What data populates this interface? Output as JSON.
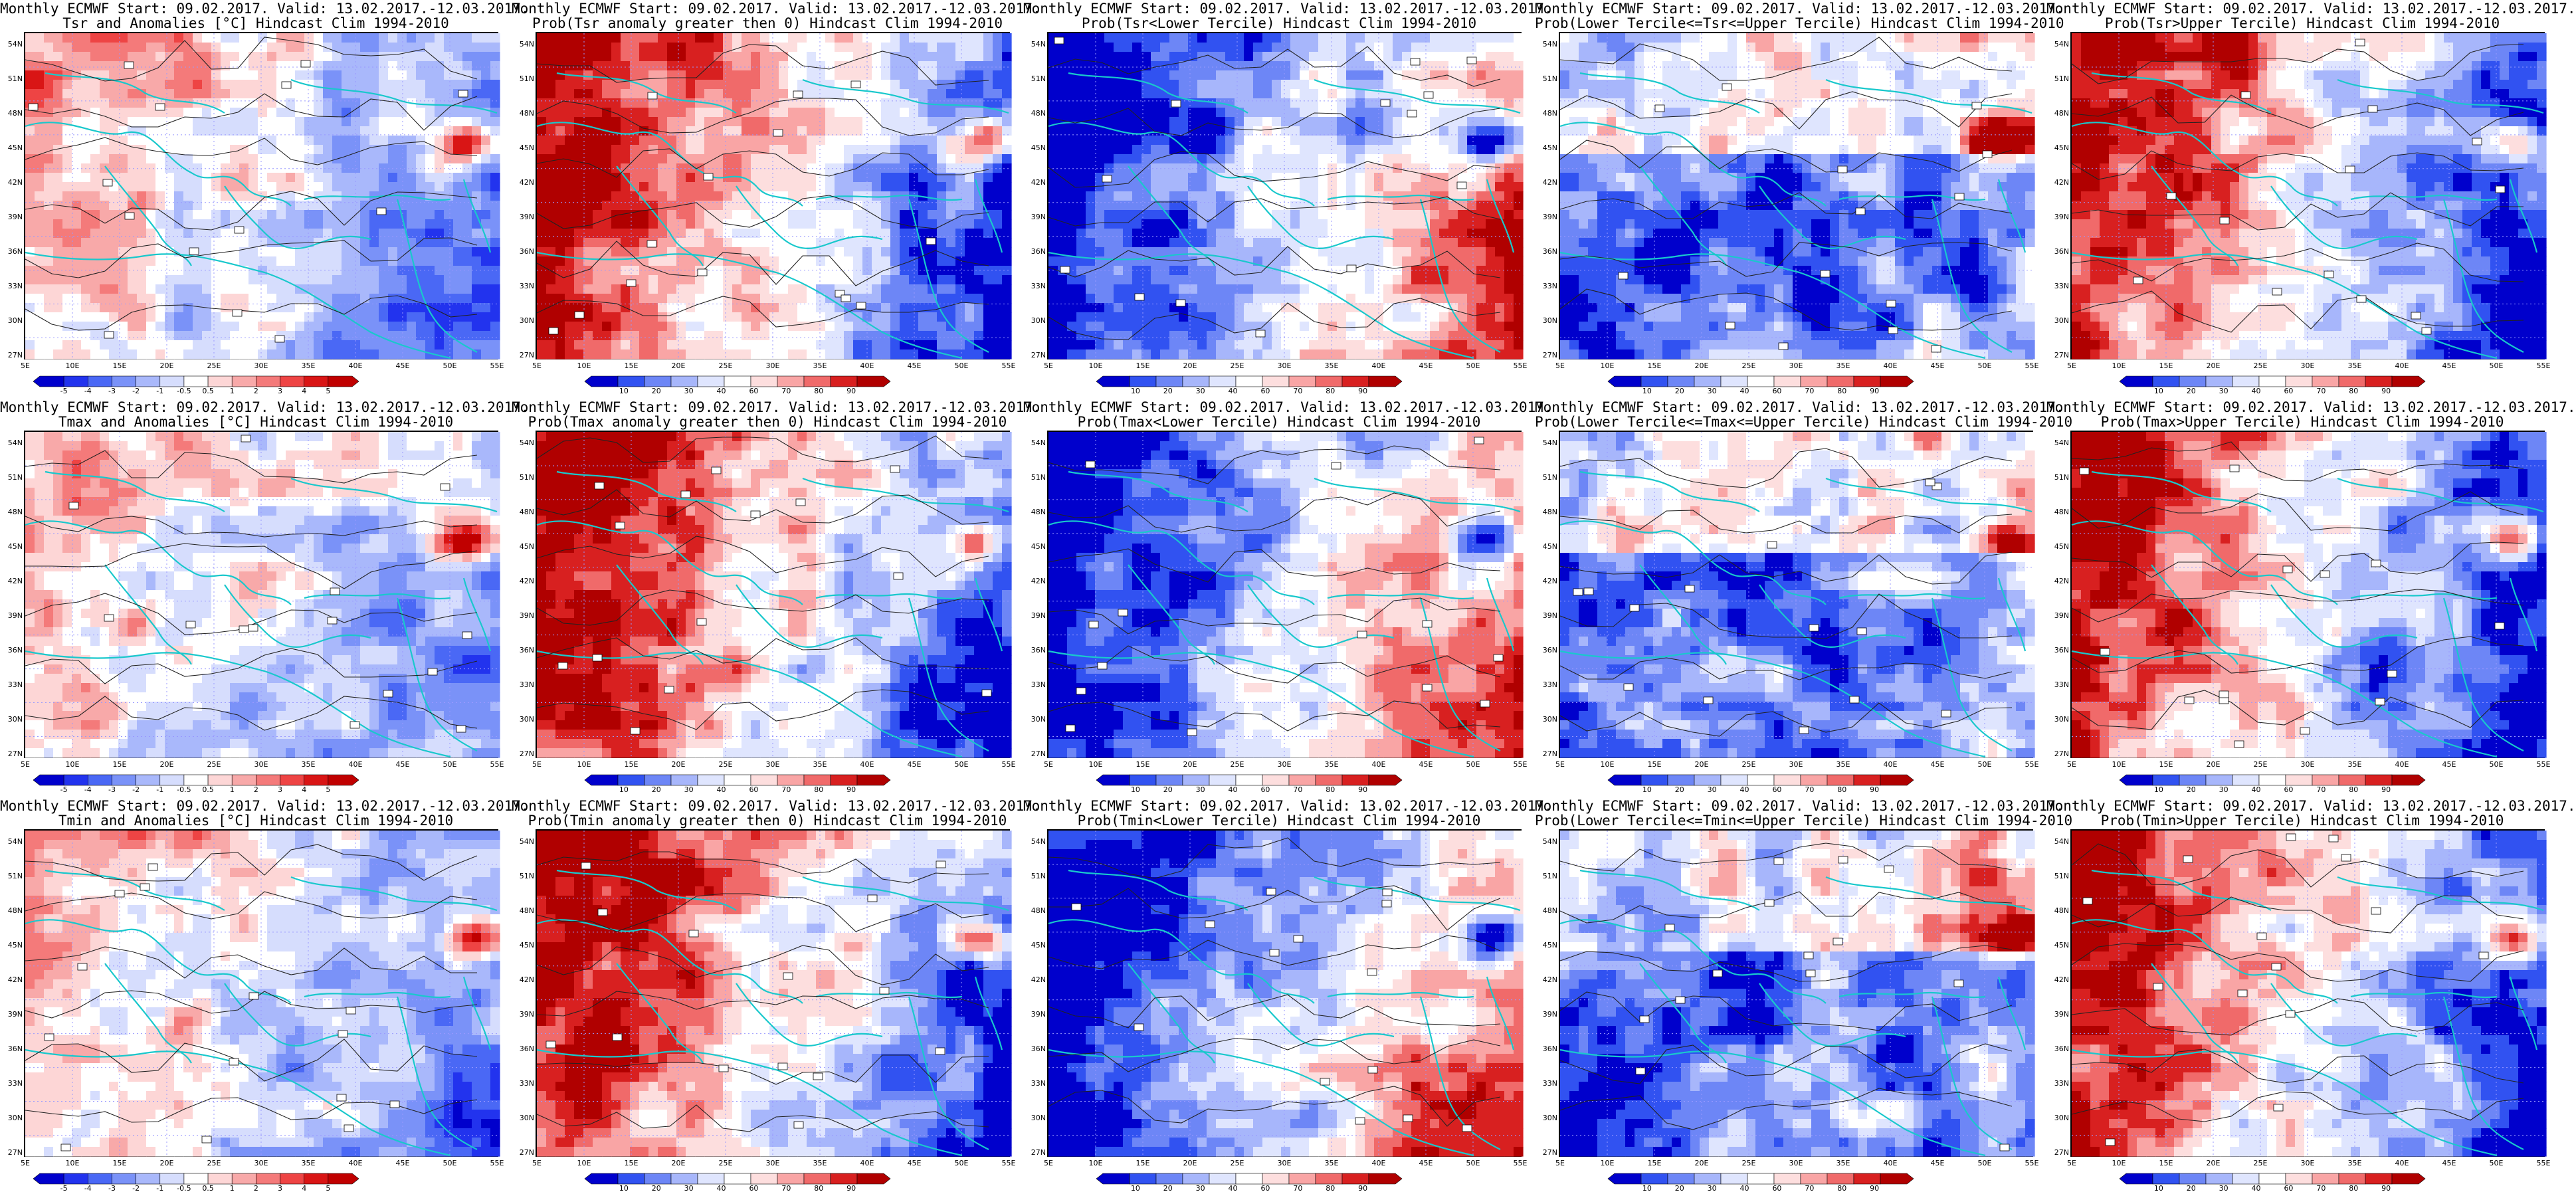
{
  "palettes": {
    "anom": [
      "#0000cc",
      "#2233ee",
      "#4a68f5",
      "#7a92f8",
      "#a9b8fb",
      "#d6ddfd",
      "#ffffff",
      "#fdd6d6",
      "#f8a9a9",
      "#f47a7a",
      "#ee4444",
      "#d91515",
      "#c00000"
    ],
    "prob": [
      "#0000cc",
      "#3152f1",
      "#6d86f6",
      "#a7b6fb",
      "#dfe5fe",
      "#ffffff",
      "#fddede",
      "#f9a5a5",
      "#f06a6a",
      "#d82020",
      "#b00000"
    ]
  },
  "scales": {
    "anom": [
      "-5",
      "-4",
      "-3",
      "-2",
      "-1",
      "-0.5",
      "0.5",
      "1",
      "2",
      "3",
      "4",
      "5"
    ],
    "prob": [
      "10",
      "20",
      "30",
      "40",
      "60",
      "70",
      "80",
      "90"
    ]
  },
  "axes": {
    "lat": [
      "54N",
      "51N",
      "48N",
      "45N",
      "42N",
      "39N",
      "36N",
      "33N",
      "30N",
      "27N"
    ],
    "lon": [
      "5E",
      "10E",
      "15E",
      "20E",
      "25E",
      "30E",
      "35E",
      "40E",
      "45E",
      "50E",
      "55E"
    ]
  },
  "panels": [
    {
      "title1": "Monthly ECMWF Start: 09.02.2017. Valid: 13.02.2017.-12.03.2017.",
      "title2": "Tsr and Anomalies [°C] Hindcast Clim 1994-2010",
      "kind": "anom",
      "var": "Tsr",
      "bias": 0.55
    },
    {
      "title1": "Monthly ECMWF Start: 09.02.2017. Valid: 13.02.2017.-12.03.2017.",
      "title2": "Prob(Tsr anomaly greater then 0) Hindcast Clim 1994-2010",
      "kind": "gt0",
      "var": "Tsr",
      "bias": 0.8
    },
    {
      "title1": "Monthly ECMWF Start: 09.02.2017. Valid: 13.02.2017.-12.03.2017.",
      "title2": "Prob(Tsr<Lower Tercile) Hindcast Clim 1994-2010",
      "kind": "lower",
      "var": "Tsr",
      "bias": 0.15
    },
    {
      "title1": "Monthly ECMWF Start: 09.02.2017. Valid: 13.02.2017.-12.03.2017.",
      "title2": "Prob(Lower Tercile<=Tsr<=Upper Tercile) Hindcast Clim 1994-2010",
      "kind": "mid",
      "var": "Tsr",
      "bias": 0.35
    },
    {
      "title1": "Monthly ECMWF Start: 09.02.2017. Valid: 13.02.2017.-12.03.2017.",
      "title2": "Prob(Tsr>Upper Tercile) Hindcast Clim 1994-2010",
      "kind": "upper",
      "var": "Tsr",
      "bias": 0.75
    },
    {
      "title1": "Monthly ECMWF Start: 09.02.2017. Valid: 13.02.2017.-12.03.2017.",
      "title2": "Tmax and Anomalies [°C] Hindcast Clim 1994-2010",
      "kind": "anom",
      "var": "Tmax",
      "bias": 0.55
    },
    {
      "title1": "Monthly ECMWF Start: 09.02.2017. Valid: 13.02.2017.-12.03.2017.",
      "title2": "Prob(Tmax anomaly greater then 0) Hindcast Clim 1994-2010",
      "kind": "gt0",
      "var": "Tmax",
      "bias": 0.8
    },
    {
      "title1": "Monthly ECMWF Start: 09.02.2017. Valid: 13.02.2017.-12.03.2017.",
      "title2": "Prob(Tmax<Lower Tercile) Hindcast Clim 1994-2010",
      "kind": "lower",
      "var": "Tmax",
      "bias": 0.15
    },
    {
      "title1": "Monthly ECMWF Start: 09.02.2017. Valid: 13.02.2017.-12.03.2017.",
      "title2": "Prob(Lower Tercile<=Tmax<=Upper Tercile) Hindcast Clim 1994-2010",
      "kind": "mid",
      "var": "Tmax",
      "bias": 0.3
    },
    {
      "title1": "Monthly ECMWF Start: 09.02.2017. Valid: 13.02.2017.-12.03.2017.",
      "title2": "Prob(Tmax>Upper Tercile) Hindcast Clim 1994-2010",
      "kind": "upper",
      "var": "Tmax",
      "bias": 0.75
    },
    {
      "title1": "Monthly ECMWF Start: 09.02.2017. Valid: 13.02.2017.-12.03.2017.",
      "title2": "Tmin and Anomalies [°C] Hindcast Clim 1994-2010",
      "kind": "anom",
      "var": "Tmin",
      "bias": 0.55
    },
    {
      "title1": "Monthly ECMWF Start: 09.02.2017. Valid: 13.02.2017.-12.03.2017.",
      "title2": "Prob(Tmin anomaly greater then 0) Hindcast Clim 1994-2010",
      "kind": "gt0",
      "var": "Tmin",
      "bias": 0.8
    },
    {
      "title1": "Monthly ECMWF Start: 09.02.2017. Valid: 13.02.2017.-12.03.2017.",
      "title2": "Prob(Tmin<Lower Tercile) Hindcast Clim 1994-2010",
      "kind": "lower",
      "var": "Tmin",
      "bias": 0.15
    },
    {
      "title1": "Monthly ECMWF Start: 09.02.2017. Valid: 13.02.2017.-12.03.2017.",
      "title2": "Prob(Lower Tercile<=Tmin<=Upper Tercile) Hindcast Clim 1994-2010",
      "kind": "mid",
      "var": "Tmin",
      "bias": 0.3
    },
    {
      "title1": "Monthly ECMWF Start: 09.02.2017. Valid: 13.02.2017.-12.03.2017.",
      "title2": "Prob(Tmin>Upper Tercile) Hindcast Clim 1994-2010",
      "kind": "upper",
      "var": "Tmin",
      "bias": 0.75
    }
  ]
}
